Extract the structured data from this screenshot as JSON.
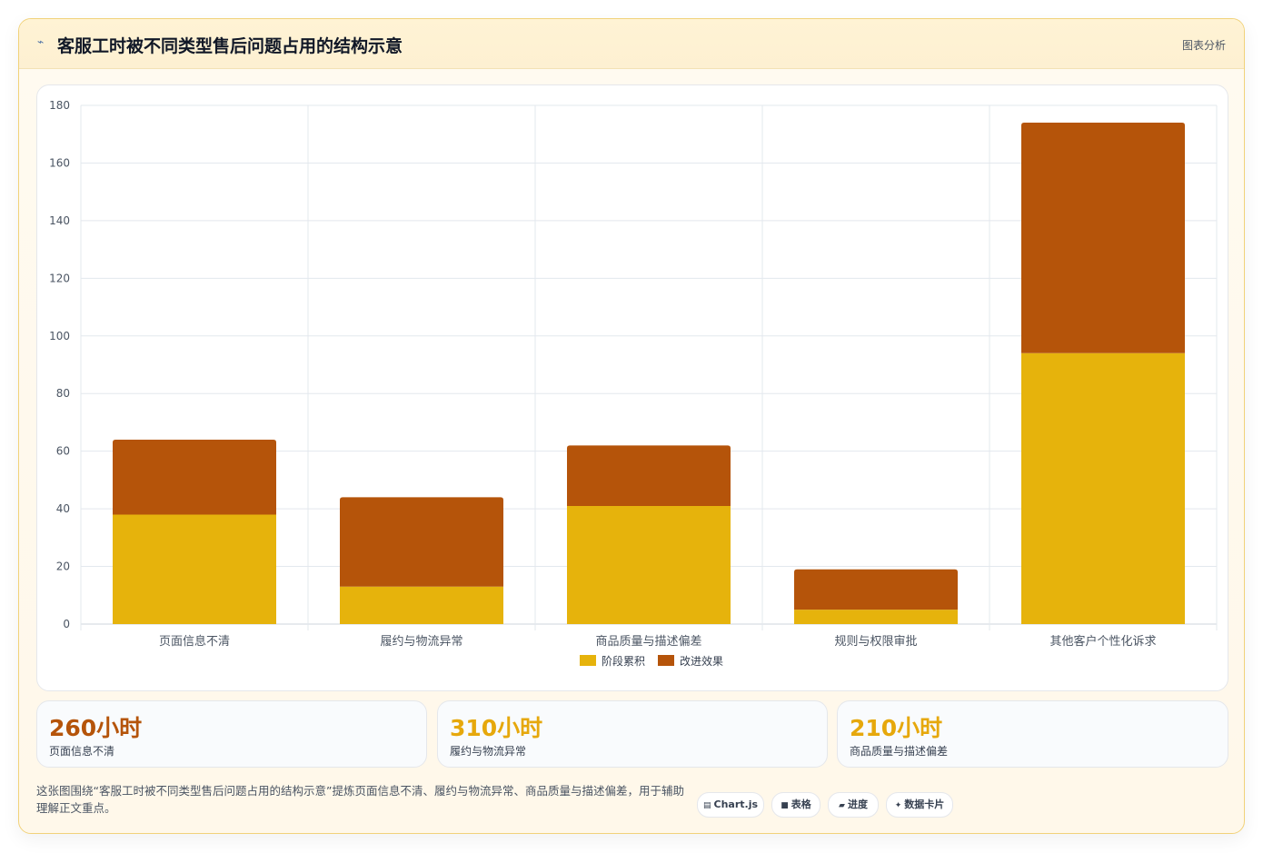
{
  "header": {
    "icon": "chart-line-icon",
    "title": "客服工时被不同类型售后问题占用的结构示意",
    "right_label": "图表分析"
  },
  "chart_data": {
    "type": "bar",
    "stacked": true,
    "categories": [
      "页面信息不清",
      "履约与物流异常",
      "商品质量与描述偏差",
      "规则与权限审批",
      "其他客户个性化诉求"
    ],
    "series": [
      {
        "name": "阶段累积",
        "color": "#e6b30c",
        "values": [
          38,
          13,
          41,
          5,
          94
        ]
      },
      {
        "name": "改进效果",
        "color": "#b5540a",
        "values": [
          26,
          31,
          21,
          14,
          80
        ]
      }
    ],
    "ylim": [
      0,
      180
    ],
    "yticks": [
      0,
      20,
      40,
      60,
      80,
      100,
      120,
      140,
      160,
      180
    ],
    "grid": true,
    "legend": "bottom"
  },
  "stats": [
    {
      "value": "260小时",
      "label": "页面信息不清",
      "color": "#b5540a"
    },
    {
      "value": "310小时",
      "label": "履约与物流异常",
      "color": "#e6a80c"
    },
    {
      "value": "210小时",
      "label": "商品质量与描述偏差",
      "color": "#e6a80c"
    }
  ],
  "footer": {
    "text": "这张图围绕“客服工时被不同类型售后问题占用的结构示意”提炼页面信息不清、履约与物流异常、商品质量与描述偏差，用于辅助理解正文重点。"
  },
  "pills": [
    {
      "icon": "chart-js-icon",
      "glyph": "▤",
      "label": "Chart.js"
    },
    {
      "icon": "table-icon",
      "glyph": "■",
      "label": "表格"
    },
    {
      "icon": "progress-icon",
      "glyph": "▰",
      "label": "进度"
    },
    {
      "icon": "sparkle-icon",
      "glyph": "✦",
      "label": "数据卡片"
    }
  ]
}
